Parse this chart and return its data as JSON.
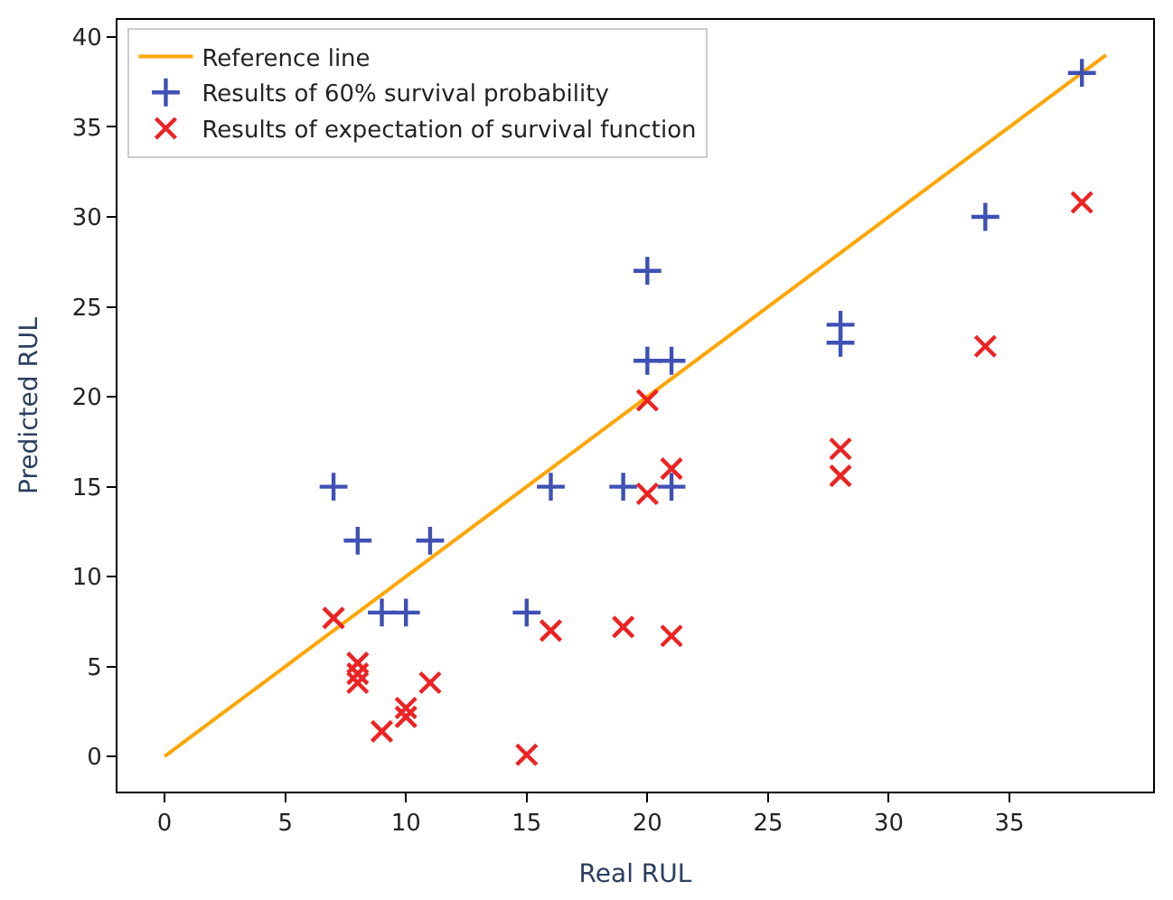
{
  "chart_data": {
    "type": "scatter",
    "xlabel": "Real RUL",
    "ylabel": "Predicted RUL",
    "xlim": [
      -1.95,
      40.95
    ],
    "ylim": [
      -1.95,
      40.95
    ],
    "xticks": [
      0,
      5,
      10,
      15,
      20,
      25,
      30,
      35
    ],
    "yticks": [
      0,
      5,
      10,
      15,
      20,
      25,
      30,
      35,
      40
    ],
    "legend": "top left",
    "series": [
      {
        "name": "Reference line",
        "type": "line",
        "color": "#ffa500",
        "marker": "none",
        "line_style": "solid",
        "x": [
          0,
          39
        ],
        "values": [
          0,
          39
        ]
      },
      {
        "name": "Results of 60% survival probability",
        "color": "#3f51b5",
        "marker": "cross",
        "x": [
          7,
          8,
          9,
          10,
          11,
          15,
          16,
          19,
          20,
          20,
          21,
          21,
          28,
          28,
          34,
          38
        ],
        "values": [
          15,
          12,
          8,
          8,
          12,
          8,
          15,
          15,
          27,
          22,
          22,
          15,
          24,
          23,
          30,
          38
        ]
      },
      {
        "name": "Results of expectation of survival function",
        "color": "#ee2222",
        "marker": "x",
        "x": [
          7,
          8,
          8,
          8,
          9,
          10,
          10,
          11,
          15,
          16,
          19,
          20,
          20,
          21,
          21,
          28,
          28,
          34,
          38
        ],
        "values": [
          7.7,
          5.2,
          4.6,
          4.1,
          1.4,
          2.7,
          2.2,
          4.1,
          0.1,
          7.0,
          7.2,
          19.8,
          14.6,
          16.0,
          6.7,
          17.1,
          15.6,
          22.8,
          30.8
        ]
      }
    ]
  }
}
